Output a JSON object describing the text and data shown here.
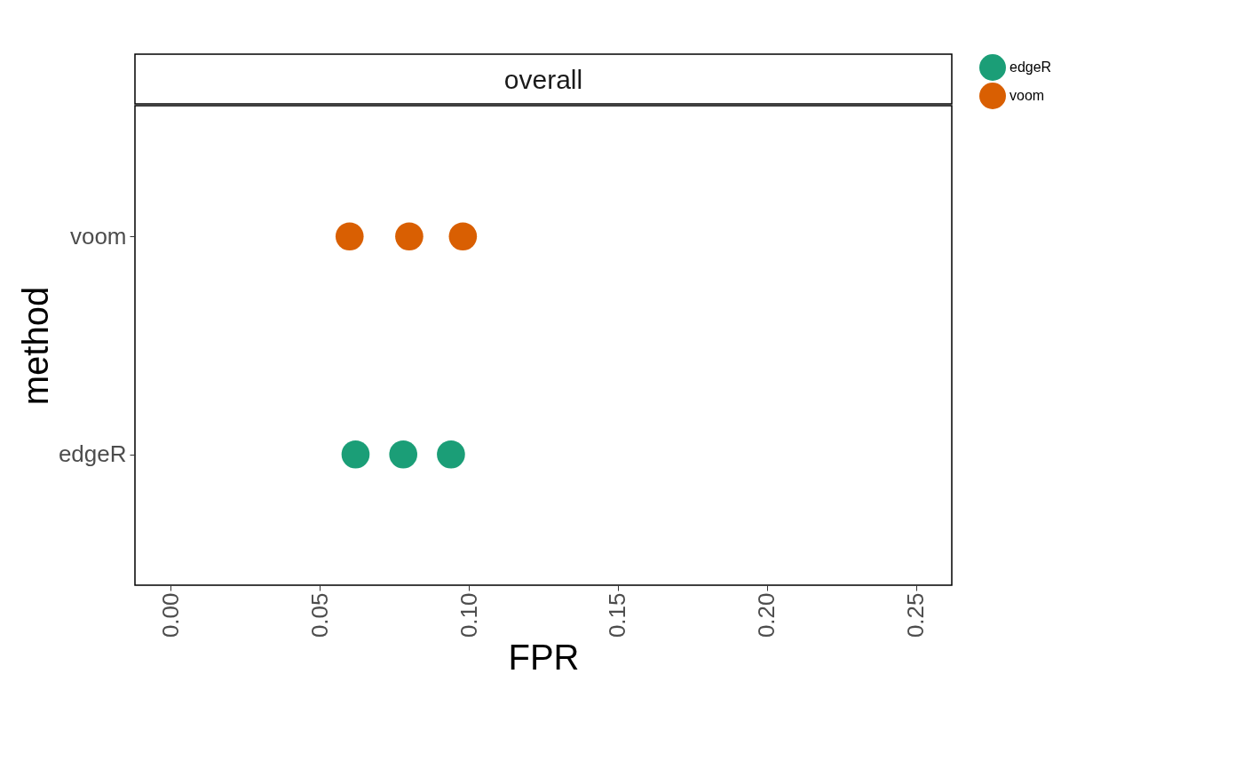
{
  "chart_data": {
    "type": "scatter",
    "orientation": "horizontal",
    "title": "overall",
    "xlabel": "FPR",
    "ylabel": "method",
    "categories": [
      "voom",
      "edgeR"
    ],
    "series": [
      {
        "name": "edgeR",
        "color": "#1b9e77",
        "values": [
          null,
          0.062
        ]
      },
      {
        "color": "#1b9e77",
        "values": [
          null,
          0.078
        ]
      },
      {
        "color": "#1b9e77",
        "values": [
          null,
          0.094
        ]
      },
      {
        "name": "voom",
        "color": "#d95f02",
        "values": [
          0.06,
          null
        ]
      },
      {
        "color": "#d95f02",
        "values": [
          0.08,
          null
        ]
      },
      {
        "color": "#d95f02",
        "values": [
          0.098,
          null
        ]
      }
    ],
    "xlim": [
      -0.012,
      0.262
    ],
    "xticks": [
      {
        "value": 0,
        "label": "0.00"
      },
      {
        "value": 0.05,
        "label": "0.05"
      },
      {
        "value": 0.1,
        "label": "0.10"
      },
      {
        "value": 0.15,
        "label": "0.15"
      },
      {
        "value": 0.2,
        "label": "0.20"
      },
      {
        "value": 0.25,
        "label": "0.25"
      }
    ],
    "marker": "circle",
    "grid": false,
    "legend": "right"
  }
}
